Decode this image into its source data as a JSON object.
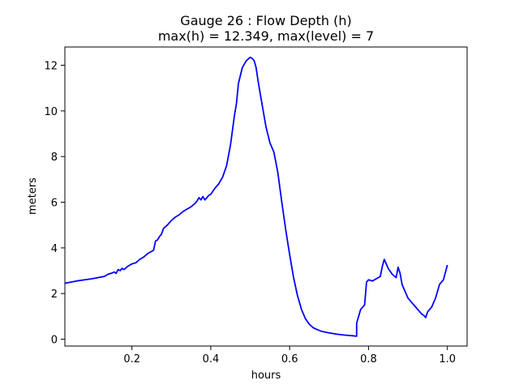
{
  "chart_data": {
    "type": "line",
    "title_line1": "Gauge 26 : Flow Depth (h)",
    "title_line2": "max(h) =  12.349,    max(level) = 7",
    "xlabel": "hours",
    "ylabel": "meters",
    "xlim": [
      0.03,
      1.05
    ],
    "ylim": [
      -0.3,
      12.8
    ],
    "xticks": [
      0.2,
      0.4,
      0.6,
      0.8,
      1.0
    ],
    "xtick_labels": [
      "0.2",
      "0.4",
      "0.6",
      "0.8",
      "1.0"
    ],
    "yticks": [
      0,
      2,
      4,
      6,
      8,
      10,
      12
    ],
    "ytick_labels": [
      "0",
      "2",
      "4",
      "6",
      "8",
      "10",
      "12"
    ],
    "grid": false,
    "line_color": "#0000ff",
    "series": [
      {
        "x": [
          0.03,
          0.06,
          0.1,
          0.13,
          0.14,
          0.15,
          0.155,
          0.16,
          0.165,
          0.17,
          0.175,
          0.18,
          0.19,
          0.2,
          0.21,
          0.22,
          0.23,
          0.24,
          0.25,
          0.255,
          0.26,
          0.265,
          0.27,
          0.275,
          0.28,
          0.29,
          0.3,
          0.31,
          0.32,
          0.33,
          0.34,
          0.35,
          0.36,
          0.365,
          0.37,
          0.375,
          0.38,
          0.385,
          0.39,
          0.395,
          0.4,
          0.41,
          0.42,
          0.43,
          0.44,
          0.45,
          0.46,
          0.465,
          0.47,
          0.48,
          0.49,
          0.5,
          0.505,
          0.51,
          0.515,
          0.52,
          0.53,
          0.54,
          0.55,
          0.56,
          0.57,
          0.58,
          0.59,
          0.6,
          0.61,
          0.62,
          0.63,
          0.64,
          0.65,
          0.66,
          0.67,
          0.68,
          0.7,
          0.72,
          0.74,
          0.76,
          0.77,
          0.77,
          0.78,
          0.79,
          0.795,
          0.8,
          0.81,
          0.82,
          0.83,
          0.835,
          0.84,
          0.845,
          0.85,
          0.86,
          0.87,
          0.875,
          0.88,
          0.885,
          0.89,
          0.9,
          0.91,
          0.92,
          0.93,
          0.935,
          0.94,
          0.945,
          0.95,
          0.96,
          0.97,
          0.98,
          0.99,
          1.0
        ],
        "y": [
          2.45,
          2.55,
          2.65,
          2.75,
          2.85,
          2.9,
          2.95,
          2.88,
          3.05,
          3.0,
          3.1,
          3.05,
          3.2,
          3.3,
          3.35,
          3.5,
          3.6,
          3.75,
          3.85,
          3.9,
          4.3,
          4.35,
          4.5,
          4.6,
          4.85,
          5.0,
          5.2,
          5.35,
          5.45,
          5.6,
          5.7,
          5.8,
          5.95,
          6.05,
          6.2,
          6.1,
          6.25,
          6.1,
          6.2,
          6.3,
          6.35,
          6.6,
          6.8,
          7.1,
          7.6,
          8.5,
          9.8,
          10.3,
          11.2,
          11.9,
          12.2,
          12.35,
          12.3,
          12.2,
          11.9,
          11.3,
          10.3,
          9.3,
          8.6,
          8.2,
          7.3,
          6.0,
          4.8,
          3.7,
          2.7,
          1.9,
          1.3,
          0.9,
          0.65,
          0.5,
          0.42,
          0.35,
          0.28,
          0.22,
          0.18,
          0.15,
          0.13,
          0.7,
          1.3,
          1.5,
          2.5,
          2.6,
          2.55,
          2.65,
          2.75,
          3.2,
          3.5,
          3.3,
          3.1,
          2.85,
          2.7,
          3.15,
          2.9,
          2.4,
          2.2,
          1.8,
          1.6,
          1.4,
          1.2,
          1.1,
          1.05,
          0.95,
          1.2,
          1.4,
          1.8,
          2.4,
          2.6,
          3.25
        ]
      }
    ]
  }
}
